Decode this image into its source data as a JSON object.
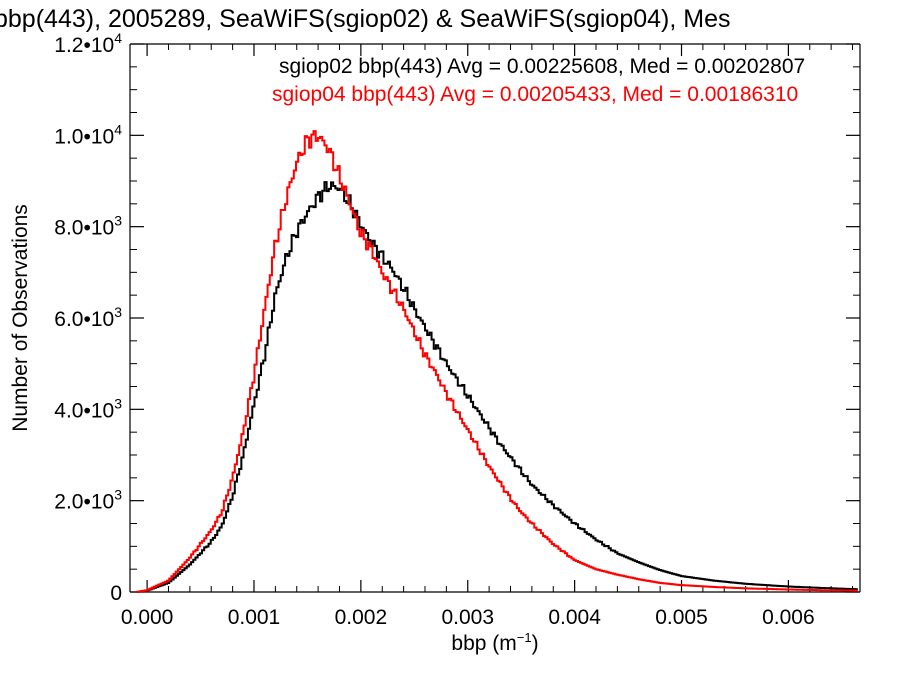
{
  "chart_data": {
    "type": "line",
    "title": "bbp(443), 2005289, SeaWiFS(sgiop02) & SeaWiFS(sgiop04), Mes",
    "xlabel": "bbp (m",
    "xlabel_sup": "−1",
    "xlabel_suffix": ")",
    "ylabel": "Number of Observations",
    "xlim": [
      -0.00016,
      0.00667
    ],
    "ylim": [
      0,
      12000
    ],
    "x_ticks": [
      0.0,
      0.001,
      0.002,
      0.003,
      0.004,
      0.005,
      0.006
    ],
    "x_tick_labels": [
      "0.000",
      "0.001",
      "0.002",
      "0.003",
      "0.004",
      "0.005",
      "0.006"
    ],
    "y_ticks": [
      0,
      2000,
      4000,
      6000,
      8000,
      10000,
      12000
    ],
    "y_tick_labels": [
      {
        "base": "0",
        "exp": ""
      },
      {
        "base": "2.0•10",
        "exp": "3"
      },
      {
        "base": "4.0•10",
        "exp": "3"
      },
      {
        "base": "6.0•10",
        "exp": "3"
      },
      {
        "base": "8.0•10",
        "exp": "3"
      },
      {
        "base": "1.0•10",
        "exp": "4"
      },
      {
        "base": "1.2•10",
        "exp": "4"
      }
    ],
    "grid": false,
    "legend_position": "top-right",
    "series": [
      {
        "name": "sgiop02 bbp(443) Avg = 0.00225608, Med = 0.00202807",
        "color": "#000000",
        "points": [
          [
            -0.0001,
            0
          ],
          [
            0.0,
            30
          ],
          [
            0.0002,
            200
          ],
          [
            0.0004,
            600
          ],
          [
            0.0006,
            1100
          ],
          [
            0.0007,
            1450
          ],
          [
            0.0008,
            2100
          ],
          [
            0.0009,
            3000
          ],
          [
            0.001,
            4100
          ],
          [
            0.0011,
            5200
          ],
          [
            0.0012,
            6500
          ],
          [
            0.0013,
            7300
          ],
          [
            0.0014,
            7900
          ],
          [
            0.0015,
            8300
          ],
          [
            0.0016,
            8650
          ],
          [
            0.0017,
            8900
          ],
          [
            0.0018,
            8850
          ],
          [
            0.0019,
            8500
          ],
          [
            0.002,
            8050
          ],
          [
            0.0021,
            7650
          ],
          [
            0.0022,
            7350
          ],
          [
            0.0023,
            7050
          ],
          [
            0.0024,
            6650
          ],
          [
            0.0025,
            6200
          ],
          [
            0.0026,
            5800
          ],
          [
            0.0027,
            5400
          ],
          [
            0.0028,
            5000
          ],
          [
            0.0029,
            4650
          ],
          [
            0.003,
            4300
          ],
          [
            0.0031,
            3950
          ],
          [
            0.0032,
            3600
          ],
          [
            0.0033,
            3250
          ],
          [
            0.0034,
            2950
          ],
          [
            0.0035,
            2650
          ],
          [
            0.0036,
            2350
          ],
          [
            0.0038,
            1900
          ],
          [
            0.004,
            1500
          ],
          [
            0.0042,
            1150
          ],
          [
            0.0044,
            850
          ],
          [
            0.0046,
            650
          ],
          [
            0.0048,
            480
          ],
          [
            0.005,
            350
          ],
          [
            0.0053,
            250
          ],
          [
            0.0056,
            180
          ],
          [
            0.006,
            120
          ],
          [
            0.0063,
            90
          ],
          [
            0.00665,
            60
          ]
        ]
      },
      {
        "name": "sgiop04 bbp(443) Avg = 0.00205433, Med = 0.00186310",
        "color": "#ff0000",
        "points": [
          [
            -0.0001,
            0
          ],
          [
            0.0,
            40
          ],
          [
            0.0002,
            250
          ],
          [
            0.0004,
            750
          ],
          [
            0.0006,
            1350
          ],
          [
            0.0007,
            1750
          ],
          [
            0.0008,
            2500
          ],
          [
            0.0009,
            3500
          ],
          [
            0.001,
            4750
          ],
          [
            0.0011,
            6200
          ],
          [
            0.0012,
            7600
          ],
          [
            0.0013,
            8600
          ],
          [
            0.0014,
            9400
          ],
          [
            0.0015,
            9900
          ],
          [
            0.0016,
            10000
          ],
          [
            0.0017,
            9700
          ],
          [
            0.0018,
            9100
          ],
          [
            0.0019,
            8500
          ],
          [
            0.002,
            7850
          ],
          [
            0.0021,
            7500
          ],
          [
            0.0022,
            7000
          ],
          [
            0.0023,
            6600
          ],
          [
            0.0024,
            6200
          ],
          [
            0.0025,
            5700
          ],
          [
            0.0026,
            5200
          ],
          [
            0.0027,
            4800
          ],
          [
            0.0028,
            4350
          ],
          [
            0.0029,
            3950
          ],
          [
            0.003,
            3550
          ],
          [
            0.0031,
            3150
          ],
          [
            0.0032,
            2750
          ],
          [
            0.0033,
            2400
          ],
          [
            0.0034,
            2050
          ],
          [
            0.0035,
            1750
          ],
          [
            0.0036,
            1500
          ],
          [
            0.0038,
            1050
          ],
          [
            0.004,
            700
          ],
          [
            0.0042,
            500
          ],
          [
            0.0044,
            380
          ],
          [
            0.0046,
            280
          ],
          [
            0.0048,
            200
          ],
          [
            0.005,
            150
          ],
          [
            0.0053,
            110
          ],
          [
            0.0056,
            80
          ],
          [
            0.006,
            55
          ],
          [
            0.0063,
            40
          ],
          [
            0.00665,
            30
          ]
        ]
      }
    ]
  }
}
